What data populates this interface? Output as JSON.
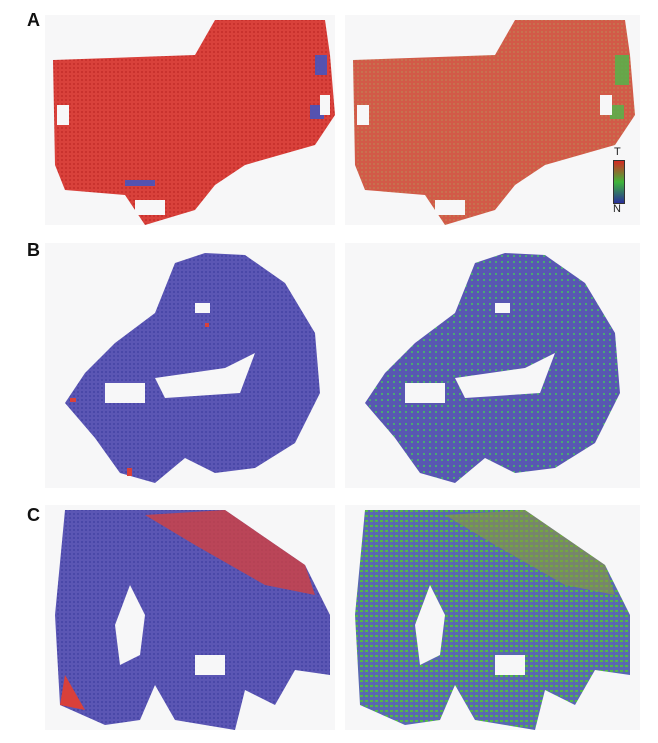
{
  "panels": [
    {
      "label": "A"
    },
    {
      "label": "B"
    },
    {
      "label": "C"
    }
  ],
  "colorbar": {
    "top_label": "T",
    "bottom_label": "N",
    "top_color": "#d42a22",
    "mid_color": "#3fb53a",
    "bottom_color": "#2a2f9a"
  },
  "colors": {
    "tumor": "#d9403a",
    "normal": "#5552b0",
    "mixed": "#4db84a"
  }
}
